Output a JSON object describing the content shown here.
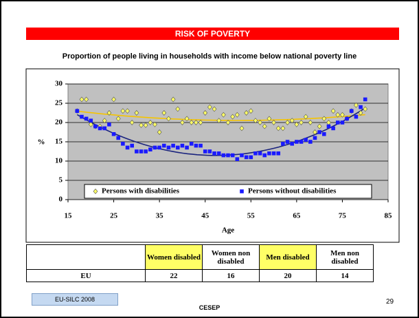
{
  "banner": "RISK OF POVERTY",
  "subtitle": "Proportion of people living in households with income below national poverty line",
  "chart_data": {
    "type": "scatter",
    "xlabel": "Age",
    "ylabel": "%",
    "xlim": [
      15,
      85
    ],
    "xticks": [
      15,
      25,
      35,
      45,
      55,
      65,
      75,
      85
    ],
    "ylim": [
      0,
      30
    ],
    "yticks": [
      0,
      5,
      10,
      15,
      20,
      25,
      30
    ],
    "grid": true,
    "trendline": "polynomial",
    "x": [
      17,
      18,
      19,
      20,
      21,
      22,
      23,
      24,
      25,
      26,
      27,
      28,
      29,
      30,
      31,
      32,
      33,
      34,
      35,
      36,
      37,
      38,
      39,
      40,
      41,
      42,
      43,
      44,
      45,
      46,
      47,
      48,
      49,
      50,
      51,
      52,
      53,
      54,
      55,
      56,
      57,
      58,
      59,
      60,
      61,
      62,
      63,
      64,
      65,
      66,
      67,
      68,
      69,
      70,
      71,
      72,
      73,
      74,
      75,
      76,
      77,
      78,
      79,
      80
    ],
    "series": [
      {
        "name": "Persons with disabilities",
        "color": "#ffff66",
        "line_color": "#f5c400",
        "marker": "diamond",
        "values": [
          23,
          26,
          26,
          19.5,
          19,
          19,
          20.5,
          22.5,
          26,
          21,
          23,
          23,
          20,
          22.5,
          19.3,
          19.3,
          20,
          19.5,
          17.5,
          22.5,
          21,
          26,
          23.5,
          20,
          21,
          20,
          20,
          20,
          22.5,
          24,
          23.5,
          20.5,
          22,
          20,
          21.5,
          22,
          18.5,
          22.5,
          23,
          20.5,
          20,
          19,
          21,
          20,
          18.5,
          18.5,
          20,
          20.5,
          19.5,
          20,
          21.5,
          20,
          17.5,
          19,
          21,
          20,
          23,
          22,
          22,
          21,
          23,
          24.5,
          22.5,
          23.5
        ]
      },
      {
        "name": "Persons without disabilities",
        "color": "#1a1aff",
        "line_color": "#1a237e",
        "marker": "square",
        "values": [
          23,
          21.5,
          21,
          20.5,
          19,
          18.5,
          18.5,
          19.5,
          17,
          16,
          14.5,
          13.5,
          14,
          12.5,
          12.5,
          12.5,
          13,
          13.5,
          13.5,
          14,
          13.5,
          14,
          13.5,
          14,
          13.5,
          14.5,
          14,
          14,
          12.5,
          12.5,
          12,
          12,
          11.5,
          11.5,
          11.5,
          10.5,
          11.5,
          11,
          11,
          12,
          12,
          11.5,
          12,
          12,
          12,
          14.5,
          15,
          14.5,
          15,
          15,
          15.5,
          15,
          16,
          17.5,
          17,
          19,
          18.5,
          20,
          20,
          21,
          23,
          21.5,
          24,
          26
        ]
      }
    ]
  },
  "table": {
    "headers": [
      "Women disabled",
      "Women non disabled",
      "Men disabled",
      "Men non disabled"
    ],
    "rows": [
      {
        "label": "EU",
        "values": [
          22,
          16,
          20,
          14
        ]
      }
    ]
  },
  "footer": {
    "source": "EU-SILC 2008",
    "org": "CESEP",
    "page": "29"
  }
}
